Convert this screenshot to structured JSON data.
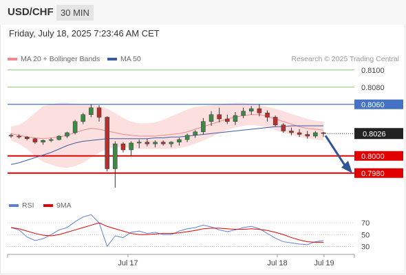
{
  "header": {
    "symbol": "USD/CHF",
    "timeframe": "30 MIN"
  },
  "datetime": "Friday, July 18, 2025 7:23:46 AM CET",
  "legend": {
    "ma20_label": "MA 20 + Bollinger Bands",
    "ma50_label": "MA 50",
    "credit": "Research © 2025 Trading Central"
  },
  "colors": {
    "ma20": "#f08a8a",
    "ma50": "#3a5ba0",
    "band": "#fbdada",
    "bull": "#3d8a47",
    "bear": "#b5302f",
    "resistance": "#8cc36b",
    "support": "#e00000",
    "pivot": "#4472c4",
    "arrow": "#2f5597",
    "rsi": "#5b7fd6",
    "rsi_ma": "#e00000"
  },
  "chart_data": [
    {
      "type": "candlestick",
      "title": "",
      "y_range": [
        0.7955,
        0.8115
      ],
      "x_ticks": [
        "Jul 17",
        "Jul 18",
        "Jul 19"
      ],
      "levels": [
        {
          "value": 0.81,
          "label": "0.8100",
          "kind": "resistance"
        },
        {
          "value": 0.808,
          "label": "0.8080",
          "kind": "resistance"
        },
        {
          "value": 0.806,
          "label": "0.8060",
          "kind": "pivot"
        },
        {
          "value": 0.8,
          "label": "0.8000",
          "kind": "support"
        },
        {
          "value": 0.798,
          "label": "0.7980",
          "kind": "support"
        }
      ],
      "last_price": {
        "value": 0.8026,
        "label": "0.8026"
      },
      "forecast_target": 0.798,
      "series": [
        {
          "name": "MA 20 + Bollinger Bands",
          "kind": "ma20",
          "values": [
            0.8026,
            0.8024,
            0.8022,
            0.8021,
            0.802,
            0.8021,
            0.8022,
            0.8024,
            0.8027,
            0.803,
            0.8032,
            0.8031,
            0.8029,
            0.8027,
            0.8025,
            0.8024,
            0.8023,
            0.8023,
            0.8023,
            0.8024,
            0.8025,
            0.8026,
            0.8028,
            0.8031,
            0.8034,
            0.8037,
            0.804,
            0.8043,
            0.8045,
            0.8047,
            0.8048,
            0.8048,
            0.8046,
            0.8043,
            0.804,
            0.8037,
            0.8034,
            0.8032,
            0.8031,
            0.803
          ],
          "upper": [
            0.8034,
            0.8036,
            0.8042,
            0.805,
            0.8058,
            0.806,
            0.8062,
            0.8062,
            0.8061,
            0.806,
            0.806,
            0.8058,
            0.8055,
            0.805,
            0.8044,
            0.804,
            0.8038,
            0.8038,
            0.8039,
            0.8042,
            0.8046,
            0.805,
            0.8054,
            0.8057,
            0.8058,
            0.8059,
            0.806,
            0.8061,
            0.8062,
            0.8062,
            0.8061,
            0.8059,
            0.8057,
            0.8055,
            0.8052,
            0.8049,
            0.8046,
            0.8043,
            0.8041,
            0.804
          ],
          "lower": [
            0.8018,
            0.8014,
            0.8008,
            0.8,
            0.7993,
            0.799,
            0.7987,
            0.7986,
            0.7988,
            0.7992,
            0.7998,
            0.8004,
            0.8008,
            0.801,
            0.801,
            0.8009,
            0.8008,
            0.8008,
            0.8008,
            0.8008,
            0.8008,
            0.8009,
            0.8011,
            0.8014,
            0.8018,
            0.8022,
            0.8026,
            0.803,
            0.8033,
            0.8035,
            0.8036,
            0.8035,
            0.8033,
            0.803,
            0.8027,
            0.8025,
            0.8022,
            0.802,
            0.8019,
            0.8018
          ]
        },
        {
          "name": "MA 50",
          "kind": "ma50",
          "values": [
            0.799,
            0.7992,
            0.7995,
            0.7998,
            0.8001,
            0.8004,
            0.8008,
            0.8012,
            0.8015,
            0.8017,
            0.8018,
            0.8019,
            0.802,
            0.802,
            0.802,
            0.802,
            0.802,
            0.802,
            0.8021,
            0.8021,
            0.8022,
            0.8022,
            0.8023,
            0.8024,
            0.8025,
            0.8026,
            0.8027,
            0.8028,
            0.8029,
            0.803,
            0.8031,
            0.8032,
            0.8033,
            0.8034,
            0.8034,
            0.8035,
            0.8035,
            0.8035,
            0.8035,
            0.8035
          ]
        }
      ],
      "candles": [
        [
          0.8024,
          0.8026,
          0.8021,
          0.8023
        ],
        [
          0.8023,
          0.8025,
          0.802,
          0.8022
        ],
        [
          0.8022,
          0.8023,
          0.8018,
          0.802
        ],
        [
          0.802,
          0.8021,
          0.8014,
          0.8016
        ],
        [
          0.8016,
          0.8019,
          0.8013,
          0.8018
        ],
        [
          0.8018,
          0.8021,
          0.8016,
          0.8019
        ],
        [
          0.8019,
          0.8024,
          0.8018,
          0.8023
        ],
        [
          0.8023,
          0.8028,
          0.8021,
          0.8027
        ],
        [
          0.8027,
          0.8042,
          0.8025,
          0.804
        ],
        [
          0.804,
          0.805,
          0.8037,
          0.8048
        ],
        [
          0.8048,
          0.806,
          0.8045,
          0.8056
        ],
        [
          0.8056,
          0.8059,
          0.804,
          0.8045
        ],
        [
          0.8045,
          0.8046,
          0.7982,
          0.7985
        ],
        [
          0.7985,
          0.8017,
          0.7963,
          0.8014
        ],
        [
          0.8014,
          0.8016,
          0.8004,
          0.8007
        ],
        [
          0.8007,
          0.8017,
          0.8,
          0.8015
        ],
        [
          0.8015,
          0.8019,
          0.8009,
          0.8016
        ],
        [
          0.8016,
          0.802,
          0.8011,
          0.8014
        ],
        [
          0.8014,
          0.8018,
          0.801,
          0.8016
        ],
        [
          0.8016,
          0.8018,
          0.8012,
          0.8014
        ],
        [
          0.8014,
          0.8017,
          0.801,
          0.8016
        ],
        [
          0.8016,
          0.8021,
          0.8012,
          0.8019
        ],
        [
          0.8019,
          0.8026,
          0.8016,
          0.8024
        ],
        [
          0.8024,
          0.803,
          0.8021,
          0.8028
        ],
        [
          0.8028,
          0.8044,
          0.8025,
          0.804
        ],
        [
          0.804,
          0.8052,
          0.8035,
          0.8048
        ],
        [
          0.8048,
          0.8056,
          0.8039,
          0.8043
        ],
        [
          0.8043,
          0.8048,
          0.8037,
          0.804
        ],
        [
          0.804,
          0.8051,
          0.8036,
          0.8047
        ],
        [
          0.8047,
          0.8056,
          0.8044,
          0.8052
        ],
        [
          0.8052,
          0.8058,
          0.8048,
          0.8055
        ],
        [
          0.8055,
          0.806,
          0.8046,
          0.805
        ],
        [
          0.805,
          0.8053,
          0.804,
          0.8045
        ],
        [
          0.8045,
          0.8047,
          0.8034,
          0.8036
        ],
        [
          0.8036,
          0.8038,
          0.8027,
          0.8029
        ],
        [
          0.8029,
          0.8033,
          0.8024,
          0.8027
        ],
        [
          0.8027,
          0.8031,
          0.8022,
          0.8025
        ],
        [
          0.8025,
          0.8029,
          0.802,
          0.8023
        ],
        [
          0.8023,
          0.8029,
          0.8021,
          0.8027
        ],
        [
          0.8027,
          0.8028,
          0.8022,
          0.8026
        ]
      ]
    },
    {
      "type": "line",
      "title": "",
      "y_range": [
        20,
        90
      ],
      "y_ticks": [
        30,
        50,
        70
      ],
      "legend": [
        "RSI",
        "9MA"
      ],
      "series": [
        {
          "name": "RSI",
          "values": [
            62,
            58,
            46,
            40,
            43,
            50,
            58,
            62,
            72,
            80,
            84,
            70,
            30,
            48,
            45,
            54,
            56,
            52,
            54,
            50,
            50,
            56,
            60,
            62,
            66,
            63,
            58,
            55,
            58,
            62,
            64,
            60,
            52,
            44,
            38,
            36,
            34,
            33,
            38,
            40
          ]
        },
        {
          "name": "9MA",
          "values": [
            62,
            60,
            56,
            52,
            49,
            48,
            50,
            54,
            58,
            62,
            66,
            70,
            64,
            60,
            56,
            52,
            50,
            50,
            51,
            52,
            52,
            53,
            55,
            57,
            60,
            61,
            61,
            60,
            59,
            59,
            60,
            59,
            57,
            54,
            50,
            45,
            41,
            38,
            37,
            37
          ]
        }
      ]
    }
  ]
}
